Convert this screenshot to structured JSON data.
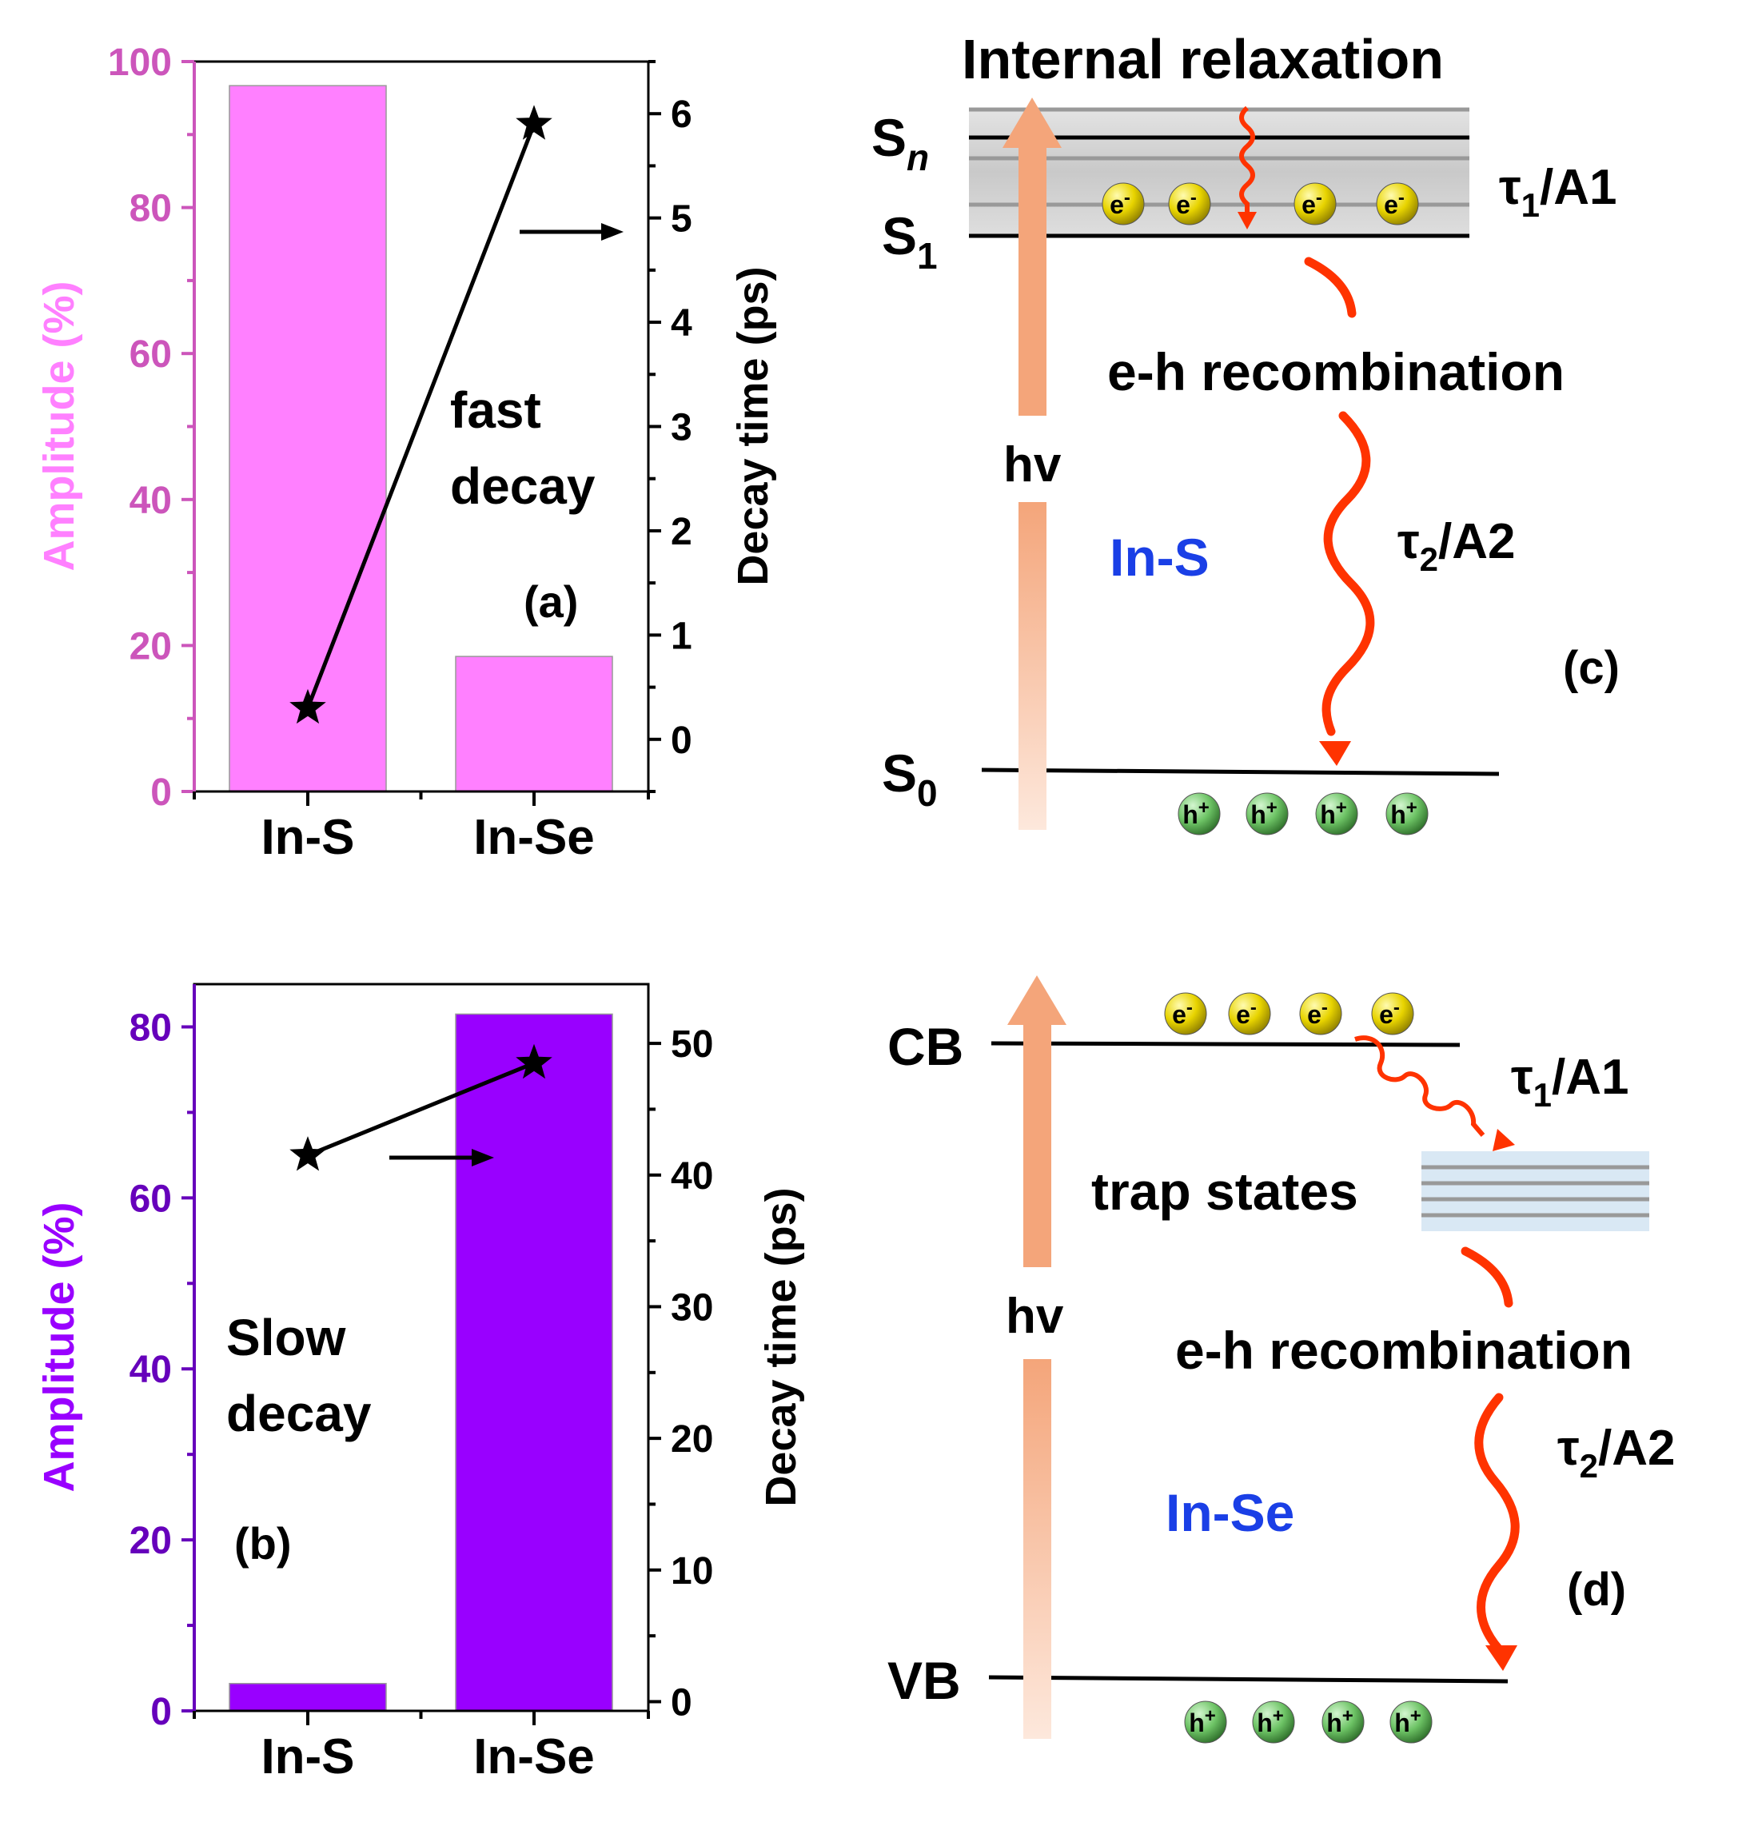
{
  "chart_data": [
    {
      "panel": "(a)",
      "type": "bar",
      "categories": [
        "In-S",
        "In-Se"
      ],
      "series": [
        {
          "name": "Amplitude (%)",
          "axis": "left",
          "kind": "bar",
          "values": [
            96.7,
            18.5
          ],
          "color": "#ff80ff"
        },
        {
          "name": "Decay time (ps)",
          "axis": "right",
          "kind": "line-star",
          "values": [
            0.3,
            5.9
          ],
          "color": "#000000"
        }
      ],
      "ylabel_left": "Amplitude (%)",
      "ylabel_right": "Decay time (ps)",
      "ylim_left": [
        0,
        100
      ],
      "ylim_right": [
        -0.5,
        6.5
      ],
      "yticks_left": [
        0,
        20,
        40,
        60,
        80,
        100
      ],
      "yticks_right": [
        0,
        1,
        2,
        3,
        4,
        5,
        6
      ],
      "left_axis_color": "#cc55bb",
      "left_label_color": "#ff80ff",
      "annotations": [
        "fast",
        "decay"
      ],
      "panel_label": "(a)"
    },
    {
      "panel": "(b)",
      "type": "bar",
      "categories": [
        "In-S",
        "In-Se"
      ],
      "series": [
        {
          "name": "Amplitude (%)",
          "axis": "left",
          "kind": "bar",
          "values": [
            3.2,
            81.5
          ],
          "color": "#9900ff"
        },
        {
          "name": "Decay time (ps)",
          "axis": "right",
          "kind": "line-star",
          "values": [
            41.5,
            48.5
          ],
          "color": "#000000"
        }
      ],
      "ylabel_left": "Amplitude (%)",
      "ylabel_right": "Decay time (ps)",
      "ylim_left": [
        0,
        85
      ],
      "ylim_right": [
        -0.7,
        54.5
      ],
      "yticks_left": [
        0,
        20,
        40,
        60,
        80
      ],
      "yticks_right": [
        0,
        10,
        20,
        30,
        40,
        50
      ],
      "left_axis_color": "#6600bb",
      "left_label_color": "#9900ff",
      "annotations": [
        "Slow",
        "decay"
      ],
      "panel_label": "(b)"
    }
  ],
  "diagram_c": {
    "title": "Internal relaxation",
    "levels": [
      "S",
      "n",
      "S",
      "1",
      "S",
      "0"
    ],
    "electron_label": "e",
    "electron_sign": "-",
    "hole_label": "h",
    "hole_sign": "+",
    "hv": "hv",
    "tau1_a1": [
      "τ",
      "1",
      "/A1"
    ],
    "recombination": "e-h recombination",
    "material": "In-S",
    "tau2_a2": [
      "τ",
      "2",
      "/A2"
    ],
    "panel_label": "(c)"
  },
  "diagram_d": {
    "cb": "CB",
    "vb": "VB",
    "electron_label": "e",
    "electron_sign": "-",
    "hole_label": "h",
    "hole_sign": "+",
    "hv": "hv",
    "tau1_a1": [
      "τ",
      "1",
      "/A1"
    ],
    "trap": "trap states",
    "recombination": "e-h recombination",
    "material": "In-Se",
    "tau2_a2": [
      "τ",
      "2",
      "/A2"
    ],
    "panel_label": "(d)"
  },
  "colors": {
    "pink_bar": "#ff80ff",
    "purple_bar": "#9900ff",
    "material_text": "#1a3fe6",
    "wave": "#ff3300",
    "arrow_dark": "#f4a57a",
    "arrow_light": "#fde8dc"
  }
}
